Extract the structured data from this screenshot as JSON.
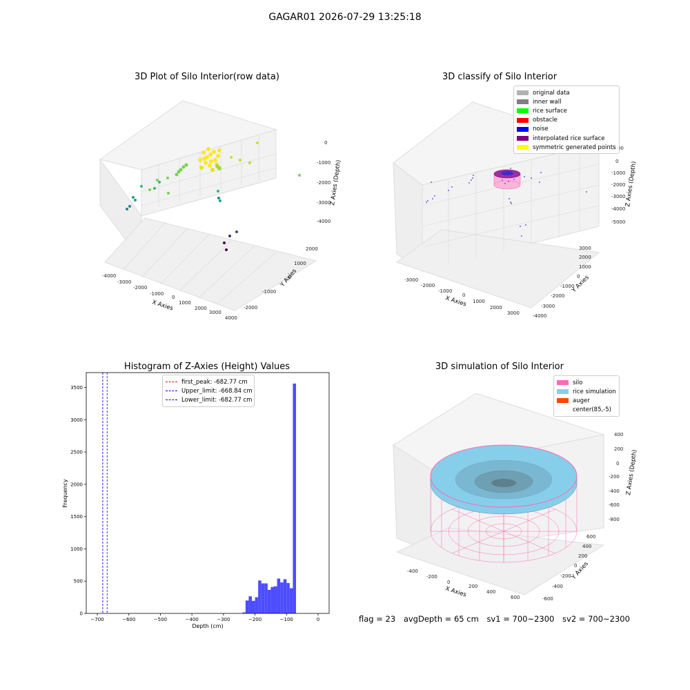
{
  "figure": {
    "suptitle": "GAGAR01 2026-07-29 13:25:18"
  },
  "footer": {
    "flag": "flag = 23",
    "avg_depth": "avgDepth = 65 cm",
    "sv1": "sv1 = 700~2300",
    "sv2": "sv2 = 700~2300"
  },
  "chart_data": [
    {
      "type": "scatter",
      "panel": "top-left",
      "projection": "3d",
      "title": "3D Plot of Silo Interior(row data)",
      "xlabel": "X Axies",
      "ylabel": "Y Axies",
      "zlabel": "Z Axies (Depth)",
      "xticks": [
        "-4000",
        "-3000",
        "-2000",
        "-1000",
        "0",
        "1000",
        "2000",
        "3000",
        "4000"
      ],
      "yticks": [
        "-2000",
        "-1000",
        "0",
        "1000",
        "2000"
      ],
      "zticks": [
        "0",
        "-1000",
        "-2000",
        "-3000",
        "-4000"
      ],
      "xlim": [
        -4300,
        4300
      ],
      "ylim": [
        -2600,
        2600
      ],
      "zlim": [
        -4300,
        300
      ],
      "colormap": "viridis (by depth)",
      "grid": true
    },
    {
      "type": "scatter",
      "panel": "top-right",
      "projection": "3d",
      "title": "3D classify of Silo Interior",
      "xlabel": "X Axies",
      "ylabel": "Y Axies",
      "zlabel": "Z Axies (Depth)",
      "xticks": [
        "-3000",
        "-2000",
        "-1000",
        "0",
        "1000",
        "2000",
        "3000"
      ],
      "yticks": [
        "-4000",
        "-3000",
        "-2000",
        "-1000",
        "0",
        "1000",
        "2000",
        "3000"
      ],
      "zticks": [
        "1000",
        "0",
        "-1000",
        "-2000",
        "-3000",
        "-4000",
        "-5000"
      ],
      "legend": [
        {
          "name": "original data",
          "color": "#b3b3b3"
        },
        {
          "name": "inner wall",
          "color": "#808080"
        },
        {
          "name": "rice surface",
          "color": "#00ff00"
        },
        {
          "name": "obstacle",
          "color": "#ff0000"
        },
        {
          "name": "noise",
          "color": "#0000ff"
        },
        {
          "name": "interpolated rice surface",
          "color": "#800080"
        },
        {
          "name": "symmetric generated points",
          "color": "#ffff00"
        }
      ],
      "legend_loc": "upper right",
      "grid": true
    },
    {
      "type": "bar",
      "panel": "bottom-left",
      "title": "Histogram of Z-Axies (Height) Values",
      "xlabel": "Depth (cm)",
      "ylabel": "Frequency",
      "xlim": [
        -735,
        35
      ],
      "ylim": [
        0,
        3730
      ],
      "xticks": [
        -700,
        -600,
        -500,
        -400,
        -300,
        -200,
        -100,
        0
      ],
      "yticks": [
        0,
        500,
        1000,
        1500,
        2000,
        2500,
        3000,
        3500
      ],
      "bin_width": 10,
      "bins": [
        {
          "x0": -240,
          "x1": -230,
          "value": 15
        },
        {
          "x0": -230,
          "x1": -220,
          "value": 200
        },
        {
          "x0": -220,
          "x1": -210,
          "value": 265
        },
        {
          "x0": -210,
          "x1": -200,
          "value": 195
        },
        {
          "x0": -200,
          "x1": -190,
          "value": 250
        },
        {
          "x0": -190,
          "x1": -180,
          "value": 510
        },
        {
          "x0": -180,
          "x1": -170,
          "value": 465
        },
        {
          "x0": -170,
          "x1": -160,
          "value": 465
        },
        {
          "x0": -160,
          "x1": -150,
          "value": 365
        },
        {
          "x0": -150,
          "x1": -140,
          "value": 410
        },
        {
          "x0": -140,
          "x1": -130,
          "value": 420
        },
        {
          "x0": -130,
          "x1": -120,
          "value": 540
        },
        {
          "x0": -120,
          "x1": -110,
          "value": 480
        },
        {
          "x0": -110,
          "x1": -100,
          "value": 530
        },
        {
          "x0": -100,
          "x1": -90,
          "value": 470
        },
        {
          "x0": -90,
          "x1": -80,
          "value": 390
        },
        {
          "x0": -80,
          "x1": -70,
          "value": 3560
        }
      ],
      "bar_color": "#4d4dff",
      "lines": [
        {
          "label": "first_peak: -682.77 cm",
          "x": -682.77,
          "color": "#ff0000"
        },
        {
          "label": "Upper_limit: -668.84 cm",
          "x": -668.84,
          "color": "#0000ff"
        },
        {
          "label": "Lower_limit: -682.77 cm",
          "x": -682.77,
          "color": "#0000ff"
        }
      ],
      "legend_loc": "upper center",
      "grid": false
    },
    {
      "type": "surface",
      "panel": "bottom-right",
      "projection": "3d",
      "title": "3D simulation of Silo Interior",
      "xlabel": "X Axies",
      "ylabel": "Y Axies",
      "zlabel": "Z Axies (Depth)",
      "xticks": [
        "-400",
        "-200",
        "0",
        "200",
        "400",
        "600"
      ],
      "yticks": [
        "-600",
        "-400",
        "-200",
        "0",
        "200",
        "400",
        "600"
      ],
      "zticks": [
        "400",
        "200",
        "0",
        "-200",
        "-400",
        "-600",
        "-800"
      ],
      "legend": [
        {
          "name": "silo",
          "color": "#ff69b4"
        },
        {
          "name": "rice simulation",
          "color": "#87ceeb"
        },
        {
          "name": "auger",
          "color": "#ff4500"
        },
        {
          "name": "center(85,-5)",
          "color": ""
        }
      ],
      "legend_loc": "upper right",
      "grid": true
    }
  ]
}
